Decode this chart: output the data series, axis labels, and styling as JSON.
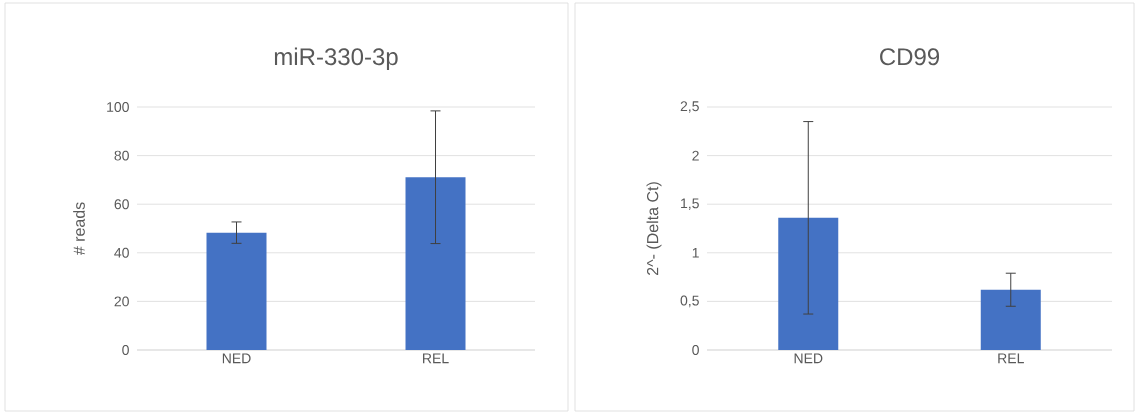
{
  "chart_data": [
    {
      "type": "bar",
      "title": "miR-330-3p",
      "ylabel": "# reads",
      "categories": [
        "NED",
        "REL"
      ],
      "values": [
        48.3,
        71.1
      ],
      "errors": [
        4.4,
        27.3
      ],
      "color": "#4472c4",
      "ylim": [
        0,
        100
      ],
      "yticks": [
        0,
        20,
        40,
        60,
        80,
        100
      ],
      "grid": "y"
    },
    {
      "type": "bar",
      "title": "CD99",
      "ylabel": "2^- (Delta Ct)",
      "categories": [
        "NED",
        "REL"
      ],
      "values": [
        1.36,
        0.62
      ],
      "errors": [
        0.99,
        0.17
      ],
      "color": "#4472c4",
      "ylim": [
        0,
        2.5
      ],
      "yticks": [
        0,
        {
          "value": 0.5,
          "label": "0,5"
        },
        1,
        {
          "value": 1.5,
          "label": "1,5"
        },
        2,
        {
          "value": 2.5,
          "label": "2,5"
        }
      ],
      "grid": "y"
    }
  ]
}
